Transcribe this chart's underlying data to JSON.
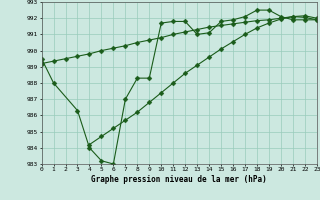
{
  "bg_color": "#cce8e0",
  "grid_color": "#99ccbb",
  "line_color": "#1a5c1a",
  "xlabel": "Graphe pression niveau de la mer (hPa)",
  "ylim_min": 983,
  "ylim_max": 993,
  "xlim_min": 0,
  "xlim_max": 23,
  "yticks": [
    983,
    984,
    985,
    986,
    987,
    988,
    989,
    990,
    991,
    992,
    993
  ],
  "xticks": [
    0,
    1,
    2,
    3,
    4,
    5,
    6,
    7,
    8,
    9,
    10,
    11,
    12,
    13,
    14,
    15,
    16,
    17,
    18,
    19,
    20,
    21,
    22,
    23
  ],
  "s1_x": [
    0,
    1,
    3,
    4,
    5,
    6,
    7,
    8,
    9,
    10,
    11,
    12,
    13,
    14,
    15,
    16,
    17,
    18,
    19,
    20,
    21,
    22,
    23
  ],
  "s1_y": [
    989.5,
    988.0,
    986.3,
    984.0,
    983.2,
    983.0,
    987.0,
    988.3,
    988.3,
    991.7,
    991.8,
    991.8,
    991.0,
    991.1,
    991.8,
    991.9,
    992.1,
    992.5,
    992.5,
    992.1,
    991.9,
    991.9,
    991.9
  ],
  "s2_x": [
    0,
    1,
    2,
    3,
    4,
    5,
    6,
    7,
    8,
    9,
    10,
    11,
    12,
    13,
    14,
    15,
    16,
    17,
    18,
    19,
    20,
    21,
    22,
    23
  ],
  "s2_y": [
    989.2,
    989.35,
    989.5,
    989.65,
    989.8,
    990.0,
    990.15,
    990.3,
    990.5,
    990.65,
    990.8,
    991.0,
    991.15,
    991.3,
    991.45,
    991.55,
    991.65,
    991.75,
    991.85,
    991.9,
    992.0,
    992.1,
    992.15,
    992.0
  ],
  "s3_x": [
    4,
    5,
    6,
    7,
    8,
    9,
    10,
    11,
    12,
    13,
    14,
    15,
    16,
    17,
    18,
    19,
    20,
    21,
    22,
    23
  ],
  "s3_y": [
    984.2,
    984.7,
    985.2,
    985.7,
    986.2,
    986.8,
    987.4,
    988.0,
    988.6,
    989.1,
    989.6,
    990.1,
    990.55,
    991.0,
    991.4,
    991.7,
    991.95,
    992.1,
    992.05,
    991.9
  ],
  "lw": 0.8,
  "ms": 2.5
}
